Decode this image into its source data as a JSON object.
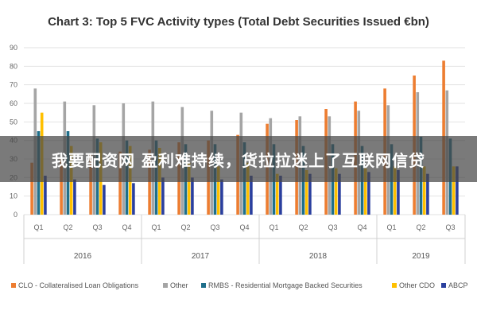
{
  "chart_data": {
    "type": "bar",
    "title": "Chart 3: Top 5 FVC Activity types (Total Debt Securities Issued €bn)",
    "categories": [
      "Q1",
      "Q2",
      "Q3",
      "Q4",
      "Q1",
      "Q2",
      "Q3",
      "Q4",
      "Q1",
      "Q2",
      "Q3",
      "Q4",
      "Q1",
      "Q2",
      "Q3"
    ],
    "years": [
      {
        "label": "2016",
        "count": 4
      },
      {
        "label": "2017",
        "count": 4
      },
      {
        "label": "2018",
        "count": 4
      },
      {
        "label": "2019",
        "count": 3
      }
    ],
    "ylim": [
      0,
      90
    ],
    "yticks": [
      0,
      10,
      20,
      30,
      40,
      50,
      60,
      70,
      80,
      90
    ],
    "grid": true,
    "legend_position": "bottom",
    "series": [
      {
        "name": "CLO - Collateralised Loan Obligations",
        "color": "#ed7d31",
        "values": [
          28,
          31,
          33,
          34,
          35,
          39,
          40,
          43,
          49,
          51,
          57,
          61,
          68,
          75,
          83
        ]
      },
      {
        "name": "Other",
        "color": "#a5a5a5",
        "values": [
          68,
          61,
          59,
          60,
          61,
          58,
          56,
          55,
          52,
          53,
          53,
          56,
          59,
          66,
          67
        ]
      },
      {
        "name": "RMBS - Residential Mortgage Backed Securities",
        "color": "#1f6f8b",
        "values": [
          45,
          45,
          41,
          40,
          40,
          38,
          38,
          39,
          38,
          37,
          38,
          37,
          38,
          42,
          41
        ]
      },
      {
        "name": "Other CDO",
        "color": "#ffc000",
        "values": [
          55,
          37,
          39,
          37,
          36,
          28,
          26,
          28,
          22,
          24,
          25,
          25,
          26,
          26,
          26
        ]
      },
      {
        "name": "ABCP",
        "color": "#2a3f9e",
        "values": [
          21,
          19,
          16,
          17,
          20,
          20,
          19,
          21,
          21,
          22,
          22,
          23,
          24,
          22,
          26
        ]
      }
    ]
  },
  "banner": {
    "text": "我要配资网 盈利难持续，货拉拉迷上了互联网信贷"
  }
}
